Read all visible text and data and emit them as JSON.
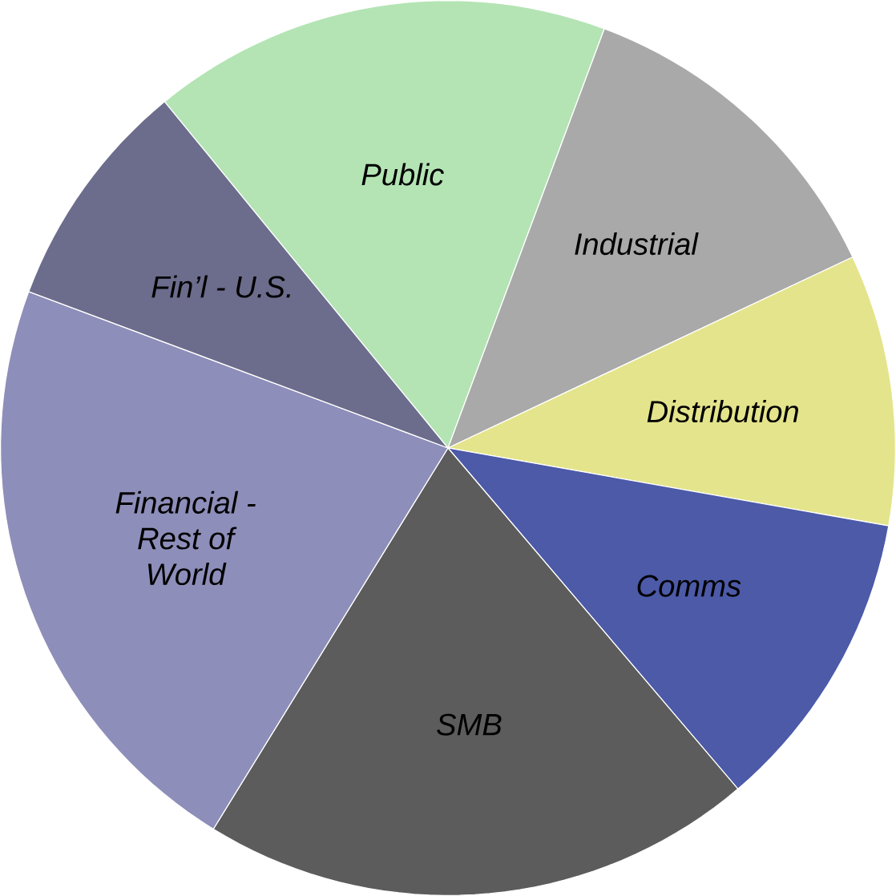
{
  "chart_data": {
    "type": "pie",
    "categories": [
      "Public",
      "Industrial",
      "Distribution",
      "Comms",
      "SMB",
      "Financial - Rest of World",
      "Fin’l - U.S."
    ],
    "values": [
      16.6,
      12.3,
      9.8,
      11.0,
      20.0,
      21.9,
      8.4
    ],
    "colors": [
      "#b4e4b4",
      "#a9a9a9",
      "#e4e48c",
      "#4c5aa8",
      "#5c5c5c",
      "#8e8eba",
      "#6c6c8c"
    ]
  }
}
